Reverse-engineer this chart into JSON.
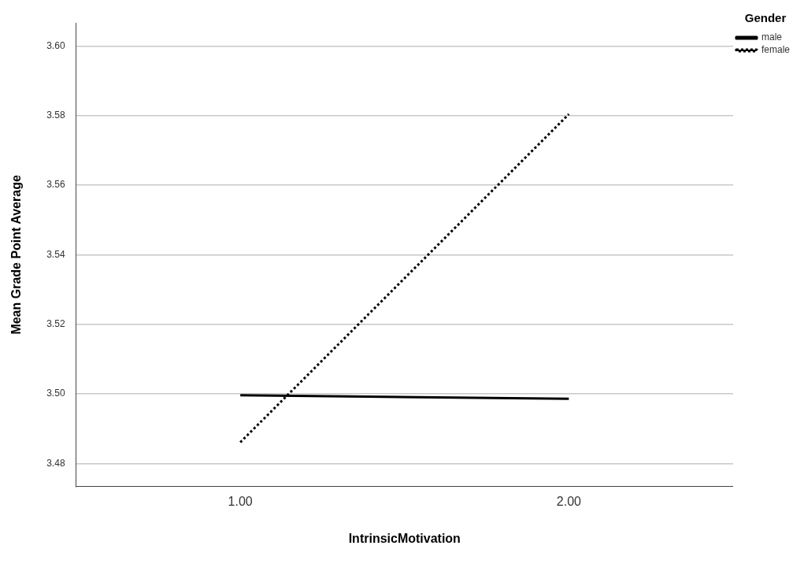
{
  "chart_data": {
    "type": "line",
    "xlabel": "IntrinsicMotivation",
    "ylabel": "Mean Grade Point Average",
    "legend_title": "Gender",
    "legend": "top right",
    "grid": "y",
    "marker": "none",
    "categories": [
      "1.00",
      "2.00"
    ],
    "ylim": [
      3.4734,
      3.6066
    ],
    "yticks": [
      {
        "value": 3.48,
        "label": "3.48"
      },
      {
        "value": 3.5,
        "label": "3.50"
      },
      {
        "value": 3.52,
        "label": "3.52"
      },
      {
        "value": 3.54,
        "label": "3.54"
      },
      {
        "value": 3.56,
        "label": "3.56"
      },
      {
        "value": 3.58,
        "label": "3.58"
      },
      {
        "value": 3.6,
        "label": "3.60"
      }
    ],
    "series": [
      {
        "name": "male",
        "color": "#000000",
        "line_style": "solid",
        "values": [
          3.4996,
          3.4986
        ]
      },
      {
        "name": "female",
        "color": "#000000",
        "line_style": "dotted",
        "values": [
          3.4861,
          3.5804
        ]
      }
    ]
  }
}
